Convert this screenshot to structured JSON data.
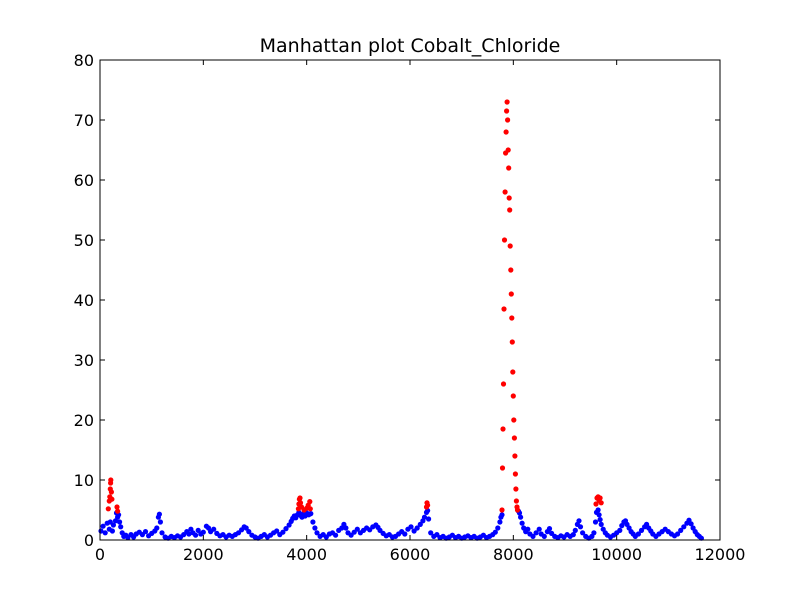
{
  "chart_data": {
    "type": "scatter",
    "title": "Manhattan plot Cobalt_Chloride",
    "xlabel": "",
    "ylabel": "",
    "xlim": [
      0,
      12000
    ],
    "ylim": [
      0,
      80
    ],
    "xticks": [
      0,
      2000,
      4000,
      6000,
      8000,
      10000,
      12000
    ],
    "yticks": [
      0,
      10,
      20,
      30,
      40,
      50,
      60,
      70,
      80
    ],
    "grid": false,
    "legend": "none",
    "colors": {
      "significant": "#ff0000",
      "non_significant": "#0000ff"
    },
    "series": [
      {
        "color": "#0000ff",
        "points": [
          [
            20,
            1.5
          ],
          [
            60,
            2.3
          ],
          [
            100,
            1.2
          ],
          [
            140,
            2.8
          ],
          [
            180,
            1.8
          ],
          [
            200,
            3.0
          ],
          [
            240,
            1.5
          ],
          [
            260,
            2.5
          ],
          [
            300,
            3.2
          ],
          [
            320,
            4.5
          ],
          [
            340,
            3.8
          ],
          [
            360,
            4.2
          ],
          [
            380,
            3.0
          ],
          [
            400,
            2.2
          ],
          [
            430,
            1.2
          ],
          [
            460,
            0.6
          ],
          [
            500,
            0.8
          ],
          [
            540,
            0.4
          ],
          [
            600,
            0.9
          ],
          [
            650,
            0.5
          ],
          [
            700,
            1.0
          ],
          [
            760,
            1.3
          ],
          [
            820,
            0.9
          ],
          [
            880,
            1.4
          ],
          [
            940,
            0.7
          ],
          [
            1000,
            1.1
          ],
          [
            1060,
            1.5
          ],
          [
            1100,
            2.0
          ],
          [
            1130,
            3.8
          ],
          [
            1150,
            4.3
          ],
          [
            1170,
            3.0
          ],
          [
            1200,
            1.2
          ],
          [
            1260,
            0.5
          ],
          [
            1320,
            0.3
          ],
          [
            1380,
            0.6
          ],
          [
            1440,
            0.4
          ],
          [
            1500,
            0.7
          ],
          [
            1560,
            0.5
          ],
          [
            1620,
            0.9
          ],
          [
            1680,
            1.4
          ],
          [
            1720,
            1.0
          ],
          [
            1760,
            1.8
          ],
          [
            1800,
            1.2
          ],
          [
            1850,
            0.8
          ],
          [
            1900,
            1.6
          ],
          [
            1950,
            1.0
          ],
          [
            2000,
            1.3
          ],
          [
            2060,
            2.3
          ],
          [
            2100,
            2.0
          ],
          [
            2140,
            1.4
          ],
          [
            2200,
            1.8
          ],
          [
            2260,
            1.1
          ],
          [
            2320,
            0.7
          ],
          [
            2380,
            0.9
          ],
          [
            2440,
            0.5
          ],
          [
            2500,
            0.8
          ],
          [
            2560,
            0.6
          ],
          [
            2620,
            0.9
          ],
          [
            2680,
            1.2
          ],
          [
            2740,
            1.7
          ],
          [
            2790,
            2.2
          ],
          [
            2830,
            2.0
          ],
          [
            2880,
            1.4
          ],
          [
            2940,
            0.8
          ],
          [
            3000,
            0.5
          ],
          [
            3060,
            0.3
          ],
          [
            3120,
            0.6
          ],
          [
            3180,
            0.9
          ],
          [
            3240,
            0.5
          ],
          [
            3300,
            0.8
          ],
          [
            3360,
            1.2
          ],
          [
            3420,
            1.5
          ],
          [
            3480,
            0.9
          ],
          [
            3540,
            1.3
          ],
          [
            3600,
            1.9
          ],
          [
            3660,
            2.5
          ],
          [
            3700,
            3.1
          ],
          [
            3730,
            3.6
          ],
          [
            3760,
            4.0
          ],
          [
            3790,
            3.7
          ],
          [
            3820,
            4.2
          ],
          [
            3850,
            4.6
          ],
          [
            3880,
            4.1
          ],
          [
            3910,
            3.8
          ],
          [
            3940,
            4.4
          ],
          [
            3970,
            4.0
          ],
          [
            4000,
            4.5
          ],
          [
            4040,
            4.2
          ],
          [
            4080,
            4.4
          ],
          [
            4120,
            3.0
          ],
          [
            4160,
            2.0
          ],
          [
            4200,
            1.2
          ],
          [
            4260,
            0.6
          ],
          [
            4320,
            0.9
          ],
          [
            4380,
            0.5
          ],
          [
            4440,
            1.0
          ],
          [
            4500,
            1.2
          ],
          [
            4560,
            0.8
          ],
          [
            4620,
            1.6
          ],
          [
            4680,
            2.0
          ],
          [
            4720,
            2.6
          ],
          [
            4760,
            2.0
          ],
          [
            4800,
            1.2
          ],
          [
            4860,
            0.8
          ],
          [
            4920,
            1.3
          ],
          [
            4980,
            1.8
          ],
          [
            5040,
            1.2
          ],
          [
            5100,
            1.6
          ],
          [
            5160,
            2.0
          ],
          [
            5220,
            1.7
          ],
          [
            5280,
            2.2
          ],
          [
            5340,
            2.5
          ],
          [
            5380,
            2.1
          ],
          [
            5420,
            1.6
          ],
          [
            5480,
            1.1
          ],
          [
            5540,
            0.7
          ],
          [
            5600,
            0.9
          ],
          [
            5660,
            0.5
          ],
          [
            5720,
            0.6
          ],
          [
            5780,
            1.0
          ],
          [
            5840,
            1.4
          ],
          [
            5900,
            1.0
          ],
          [
            5960,
            1.8
          ],
          [
            6020,
            2.2
          ],
          [
            6080,
            1.5
          ],
          [
            6140,
            2.0
          ],
          [
            6200,
            2.6
          ],
          [
            6250,
            3.2
          ],
          [
            6280,
            3.8
          ],
          [
            6320,
            4.6
          ],
          [
            6340,
            4.9
          ],
          [
            6360,
            3.5
          ],
          [
            6400,
            1.2
          ],
          [
            6460,
            0.6
          ],
          [
            6520,
            0.9
          ],
          [
            6580,
            0.4
          ],
          [
            6640,
            0.6
          ],
          [
            6700,
            0.3
          ],
          [
            6760,
            0.5
          ],
          [
            6820,
            0.8
          ],
          [
            6880,
            0.4
          ],
          [
            6940,
            0.6
          ],
          [
            7000,
            0.3
          ],
          [
            7060,
            0.5
          ],
          [
            7120,
            0.7
          ],
          [
            7180,
            0.4
          ],
          [
            7240,
            0.6
          ],
          [
            7300,
            0.3
          ],
          [
            7360,
            0.5
          ],
          [
            7420,
            0.8
          ],
          [
            7480,
            0.4
          ],
          [
            7540,
            0.6
          ],
          [
            7600,
            0.9
          ],
          [
            7650,
            1.3
          ],
          [
            7700,
            2.0
          ],
          [
            7740,
            3.0
          ],
          [
            7760,
            3.8
          ],
          [
            7780,
            4.2
          ],
          [
            8100,
            4.8
          ],
          [
            8120,
            4.5
          ],
          [
            8140,
            3.8
          ],
          [
            8170,
            2.8
          ],
          [
            8200,
            2.0
          ],
          [
            8240,
            1.4
          ],
          [
            8280,
            1.8
          ],
          [
            8320,
            1.0
          ],
          [
            8380,
            0.6
          ],
          [
            8440,
            1.2
          ],
          [
            8500,
            1.8
          ],
          [
            8540,
            1.0
          ],
          [
            8600,
            0.6
          ],
          [
            8660,
            1.4
          ],
          [
            8700,
            1.9
          ],
          [
            8740,
            1.1
          ],
          [
            8800,
            0.6
          ],
          [
            8860,
            0.4
          ],
          [
            8920,
            0.7
          ],
          [
            8980,
            0.5
          ],
          [
            9040,
            0.9
          ],
          [
            9100,
            0.6
          ],
          [
            9160,
            0.9
          ],
          [
            9200,
            1.6
          ],
          [
            9240,
            2.6
          ],
          [
            9270,
            3.2
          ],
          [
            9300,
            2.2
          ],
          [
            9340,
            1.2
          ],
          [
            9400,
            0.6
          ],
          [
            9460,
            0.3
          ],
          [
            9520,
            0.6
          ],
          [
            9560,
            1.2
          ],
          [
            9590,
            3.0
          ],
          [
            9610,
            4.6
          ],
          [
            9640,
            5.0
          ],
          [
            9660,
            4.2
          ],
          [
            9680,
            3.4
          ],
          [
            9700,
            2.6
          ],
          [
            9740,
            1.8
          ],
          [
            9780,
            1.2
          ],
          [
            9820,
            0.8
          ],
          [
            9880,
            0.5
          ],
          [
            9940,
            0.8
          ],
          [
            10000,
            1.2
          ],
          [
            10060,
            1.6
          ],
          [
            10100,
            2.4
          ],
          [
            10140,
            3.0
          ],
          [
            10170,
            3.2
          ],
          [
            10200,
            2.6
          ],
          [
            10240,
            2.0
          ],
          [
            10280,
            1.4
          ],
          [
            10320,
            1.0
          ],
          [
            10360,
            0.6
          ],
          [
            10420,
            1.0
          ],
          [
            10480,
            1.6
          ],
          [
            10540,
            2.2
          ],
          [
            10580,
            2.6
          ],
          [
            10620,
            2.0
          ],
          [
            10660,
            1.5
          ],
          [
            10700,
            1.0
          ],
          [
            10760,
            0.6
          ],
          [
            10820,
            1.0
          ],
          [
            10880,
            1.4
          ],
          [
            10940,
            1.8
          ],
          [
            11000,
            1.4
          ],
          [
            11060,
            1.0
          ],
          [
            11120,
            0.7
          ],
          [
            11180,
            1.0
          ],
          [
            11240,
            1.6
          ],
          [
            11300,
            2.2
          ],
          [
            11360,
            2.8
          ],
          [
            11400,
            3.3
          ],
          [
            11440,
            2.7
          ],
          [
            11480,
            2.0
          ],
          [
            11520,
            1.4
          ],
          [
            11560,
            0.9
          ],
          [
            11600,
            0.6
          ],
          [
            11640,
            0.3
          ]
        ]
      },
      {
        "color": "#ff0000",
        "points": [
          [
            160,
            5.2
          ],
          [
            180,
            6.5
          ],
          [
            190,
            7.2
          ],
          [
            200,
            8.5
          ],
          [
            205,
            9.5
          ],
          [
            210,
            10.0
          ],
          [
            220,
            8.0
          ],
          [
            230,
            6.8
          ],
          [
            330,
            5.5
          ],
          [
            340,
            4.8
          ],
          [
            3840,
            5.2
          ],
          [
            3850,
            6.0
          ],
          [
            3860,
            6.8
          ],
          [
            3870,
            7.0
          ],
          [
            3880,
            6.2
          ],
          [
            3900,
            5.5
          ],
          [
            3950,
            5.0
          ],
          [
            4000,
            5.3
          ],
          [
            4030,
            5.8
          ],
          [
            4060,
            6.4
          ],
          [
            4070,
            5.2
          ],
          [
            6320,
            5.5
          ],
          [
            6330,
            6.2
          ],
          [
            6340,
            5.8
          ],
          [
            7780,
            5.0
          ],
          [
            7790,
            12.0
          ],
          [
            7800,
            18.5
          ],
          [
            7810,
            26.0
          ],
          [
            7820,
            38.5
          ],
          [
            7830,
            50.0
          ],
          [
            7840,
            58.0
          ],
          [
            7850,
            64.5
          ],
          [
            7860,
            68.0
          ],
          [
            7870,
            71.5
          ],
          [
            7880,
            73.0
          ],
          [
            7890,
            70.0
          ],
          [
            7900,
            65.0
          ],
          [
            7910,
            62.0
          ],
          [
            7920,
            57.0
          ],
          [
            7930,
            55.0
          ],
          [
            7940,
            49.0
          ],
          [
            7950,
            45.0
          ],
          [
            7960,
            41.0
          ],
          [
            7970,
            37.0
          ],
          [
            7980,
            33.0
          ],
          [
            7990,
            28.0
          ],
          [
            8000,
            24.0
          ],
          [
            8010,
            20.0
          ],
          [
            8020,
            17.0
          ],
          [
            8030,
            14.0
          ],
          [
            8040,
            11.0
          ],
          [
            8050,
            8.5
          ],
          [
            8060,
            6.5
          ],
          [
            8070,
            5.5
          ],
          [
            8080,
            5.0
          ],
          [
            9600,
            6.0
          ],
          [
            9620,
            7.0
          ],
          [
            9640,
            7.2
          ],
          [
            9660,
            6.6
          ],
          [
            9680,
            7.0
          ],
          [
            9700,
            6.2
          ]
        ]
      }
    ]
  }
}
